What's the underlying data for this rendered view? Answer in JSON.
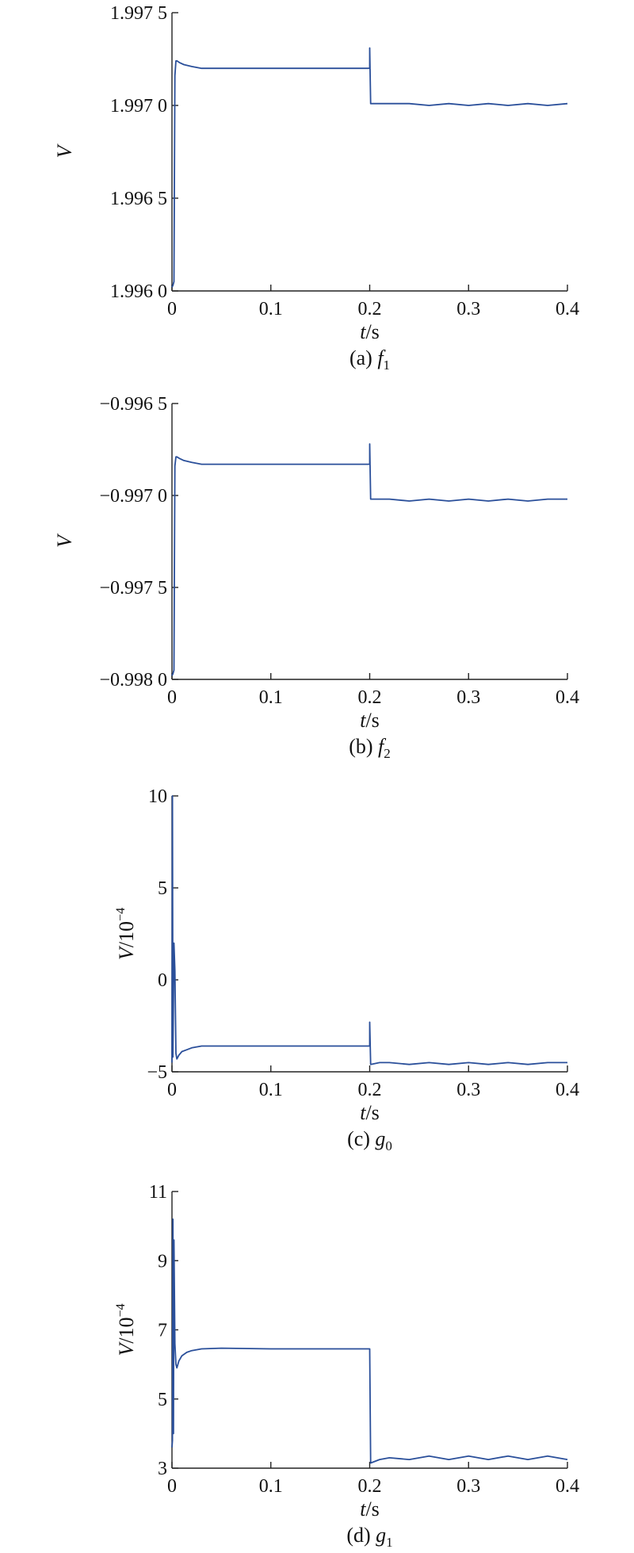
{
  "chart_data": [
    {
      "type": "line",
      "caption_prefix": "(a) ",
      "caption_var": "f",
      "caption_sub": "1",
      "ylabel_var": "V",
      "ylabel_unit": "",
      "xlabel_var": "t",
      "xlabel_unit": "/s",
      "xlim": [
        0,
        0.4
      ],
      "ylim": [
        1.996,
        1.9975
      ],
      "xticks": [
        0,
        0.1,
        0.2,
        0.3,
        0.4
      ],
      "xtick_labels": [
        "0",
        "0.1",
        "0.2",
        "0.3",
        "0.4"
      ],
      "yticks": [
        1.996,
        1.9965,
        1.997,
        1.9975
      ],
      "ytick_labels": [
        "1.996 0",
        "1.996 5",
        "1.997 0",
        "1.997 5"
      ],
      "series": [
        {
          "color": "#2a4f9a",
          "x": [
            0,
            0.001,
            0.002,
            0.003,
            0.004,
            0.005,
            0.008,
            0.012,
            0.02,
            0.03,
            0.05,
            0.1,
            0.15,
            0.199,
            0.2,
            0.2,
            0.201,
            0.21,
            0.22,
            0.24,
            0.26,
            0.28,
            0.3,
            0.32,
            0.34,
            0.36,
            0.38,
            0.4
          ],
          "y": [
            1.99602,
            1.99603,
            1.99605,
            1.99716,
            1.99724,
            1.99724,
            1.99723,
            1.99722,
            1.99721,
            1.9972,
            1.9972,
            1.9972,
            1.9972,
            1.9972,
            1.9972,
            1.99731,
            1.99701,
            1.99701,
            1.99701,
            1.99701,
            1.997,
            1.99701,
            1.997,
            1.99701,
            1.997,
            1.99701,
            1.997,
            1.99701
          ]
        }
      ]
    },
    {
      "type": "line",
      "caption_prefix": "(b) ",
      "caption_var": "f",
      "caption_sub": "2",
      "ylabel_var": "V",
      "ylabel_unit": "",
      "xlabel_var": "t",
      "xlabel_unit": "/s",
      "xlim": [
        0,
        0.4
      ],
      "ylim": [
        -0.998,
        -0.9965
      ],
      "xticks": [
        0,
        0.1,
        0.2,
        0.3,
        0.4
      ],
      "xtick_labels": [
        "0",
        "0.1",
        "0.2",
        "0.3",
        "0.4"
      ],
      "yticks": [
        -0.998,
        -0.9975,
        -0.997,
        -0.9965
      ],
      "ytick_labels": [
        "−0.998 0",
        "−0.997 5",
        "−0.997 0",
        "−0.996 5"
      ],
      "series": [
        {
          "color": "#2a4f9a",
          "x": [
            0,
            0.001,
            0.002,
            0.003,
            0.004,
            0.005,
            0.008,
            0.012,
            0.02,
            0.03,
            0.05,
            0.1,
            0.15,
            0.199,
            0.2,
            0.2,
            0.201,
            0.21,
            0.22,
            0.24,
            0.26,
            0.28,
            0.3,
            0.32,
            0.34,
            0.36,
            0.38,
            0.4
          ],
          "y": [
            -0.99798,
            -0.99797,
            -0.99795,
            -0.99684,
            -0.99679,
            -0.99679,
            -0.9968,
            -0.99681,
            -0.99682,
            -0.99683,
            -0.99683,
            -0.99683,
            -0.99683,
            -0.99683,
            -0.99683,
            -0.99672,
            -0.99702,
            -0.99702,
            -0.99702,
            -0.99703,
            -0.99702,
            -0.99703,
            -0.99702,
            -0.99703,
            -0.99702,
            -0.99703,
            -0.99702,
            -0.99702
          ]
        }
      ]
    },
    {
      "type": "line",
      "caption_prefix": "(c) ",
      "caption_var": "g",
      "caption_sub": "0",
      "ylabel_var": "V",
      "ylabel_unit": "/10",
      "ylabel_exp": "−4",
      "xlabel_var": "t",
      "xlabel_unit": "/s",
      "xlim": [
        0,
        0.4
      ],
      "ylim": [
        -5,
        10
      ],
      "xticks": [
        0,
        0.1,
        0.2,
        0.3,
        0.4
      ],
      "xtick_labels": [
        "0",
        "0.1",
        "0.2",
        "0.3",
        "0.4"
      ],
      "yticks": [
        -5,
        0,
        5,
        10
      ],
      "ytick_labels": [
        "−5",
        "0",
        "5",
        "10"
      ],
      "series": [
        {
          "color": "#2a4f9a",
          "x": [
            0,
            0.0005,
            0.001,
            0.002,
            0.003,
            0.004,
            0.005,
            0.007,
            0.01,
            0.015,
            0.02,
            0.03,
            0.05,
            0.1,
            0.15,
            0.199,
            0.2,
            0.2,
            0.201,
            0.21,
            0.22,
            0.24,
            0.26,
            0.28,
            0.3,
            0.32,
            0.34,
            0.36,
            0.38,
            0.4
          ],
          "y": [
            -4.5,
            10,
            -4.2,
            2,
            0.5,
            -4,
            -4.3,
            -4.1,
            -3.9,
            -3.8,
            -3.7,
            -3.6,
            -3.6,
            -3.6,
            -3.6,
            -3.6,
            -3.6,
            -2.3,
            -4.6,
            -4.5,
            -4.5,
            -4.6,
            -4.5,
            -4.6,
            -4.5,
            -4.6,
            -4.5,
            -4.6,
            -4.5,
            -4.5
          ]
        }
      ]
    },
    {
      "type": "line",
      "caption_prefix": "(d) ",
      "caption_var": "g",
      "caption_sub": "1",
      "ylabel_var": "V",
      "ylabel_unit": "/10",
      "ylabel_exp": "−4",
      "xlabel_var": "t",
      "xlabel_unit": "/s",
      "xlim": [
        0,
        0.4
      ],
      "ylim": [
        3,
        11
      ],
      "xticks": [
        0,
        0.1,
        0.2,
        0.3,
        0.4
      ],
      "xtick_labels": [
        "0",
        "0.1",
        "0.2",
        "0.3",
        "0.4"
      ],
      "yticks": [
        3,
        5,
        7,
        9,
        11
      ],
      "ytick_labels": [
        "3",
        "5",
        "7",
        "9",
        "11"
      ],
      "series": [
        {
          "color": "#2a4f9a",
          "x": [
            0,
            0.0005,
            0.001,
            0.0015,
            0.002,
            0.003,
            0.004,
            0.005,
            0.007,
            0.01,
            0.015,
            0.02,
            0.03,
            0.05,
            0.1,
            0.15,
            0.199,
            0.2,
            0.201,
            0.21,
            0.22,
            0.24,
            0.26,
            0.28,
            0.3,
            0.32,
            0.34,
            0.36,
            0.38,
            0.4
          ],
          "y": [
            3.6,
            3.8,
            10.2,
            4.0,
            9.6,
            6.6,
            6.0,
            5.9,
            6.1,
            6.25,
            6.35,
            6.4,
            6.45,
            6.47,
            6.45,
            6.45,
            6.45,
            6.45,
            3.15,
            3.25,
            3.3,
            3.25,
            3.35,
            3.25,
            3.35,
            3.25,
            3.35,
            3.25,
            3.35,
            3.25
          ]
        }
      ]
    }
  ]
}
